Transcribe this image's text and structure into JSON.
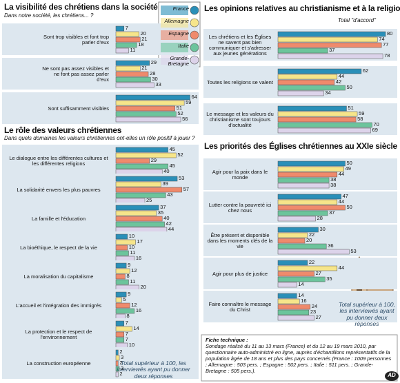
{
  "chart_data": [
    {
      "type": "bar",
      "orientation": "horizontal",
      "title": "La visibilité des chrétiens dans la société",
      "subtitle": "Dans notre société, les chrétiens... ?",
      "categories": [
        "Sont trop visibles et font trop parler d'eux",
        "Ne sont pas assez visibles et ne font pas assez parler d'eux",
        "Sont suffisamment visibles"
      ],
      "series": [
        {
          "name": "France",
          "color": "#2a8fb8",
          "values": [
            7,
            29,
            64
          ]
        },
        {
          "name": "Allemagne",
          "color": "#f6e58a",
          "values": [
            20,
            21,
            59
          ]
        },
        {
          "name": "Espagne",
          "color": "#ef8a6c",
          "values": [
            21,
            28,
            51
          ]
        },
        {
          "name": "Italie",
          "color": "#6cc49c",
          "values": [
            18,
            30,
            52
          ]
        },
        {
          "name": "Grande-Bretagne",
          "color": "#dcd3ea",
          "values": [
            11,
            33,
            56
          ]
        }
      ]
    },
    {
      "type": "bar",
      "orientation": "horizontal",
      "title": "Le rôle des valeurs chrétiennes",
      "subtitle": "Dans quels domaines les valeurs chrétiennes ont-elles un rôle positif à jouer ?",
      "categories": [
        "Le dialogue entre les différentes cultures et les différentes religions",
        "La solidarité envers les plus pauvres",
        "La famille et l'éducation",
        "La bioéthique, le respect de la vie",
        "La moralisation du capitalisme",
        "L'accueil et l'intégration des immigrés",
        "La protection et le respect de l'environnement",
        "La construction européenne"
      ],
      "series": [
        {
          "name": "France",
          "color": "#2a8fb8",
          "values": [
            45,
            53,
            37,
            10,
            9,
            9,
            7,
            2
          ]
        },
        {
          "name": "Allemagne",
          "color": "#f6e58a",
          "values": [
            52,
            39,
            35,
            17,
            12,
            5,
            14,
            3
          ]
        },
        {
          "name": "Espagne",
          "color": "#ef8a6c",
          "values": [
            29,
            57,
            40,
            10,
            8,
            12,
            7,
            2
          ]
        },
        {
          "name": "Italie",
          "color": "#6cc49c",
          "values": [
            45,
            43,
            42,
            11,
            11,
            16,
            7,
            3
          ]
        },
        {
          "name": "Grande-Bretagne",
          "color": "#dcd3ea",
          "values": [
            40,
            25,
            44,
            16,
            20,
            8,
            10,
            2
          ]
        }
      ],
      "note": "Total supérieur à 100, les interviewés ayant pu donner deux réponses"
    },
    {
      "type": "bar",
      "orientation": "horizontal",
      "title": "Les opinions relatives au christianisme et à la religion",
      "subtitle": "Total \"d'accord\"",
      "categories": [
        "Les chrétiens et les Églises ne savent pas bien communiquer et s'adresser aux jeunes générations",
        "Toutes les religions se valent",
        "Le message et les valeurs du christianisme sont toujours d'actualité"
      ],
      "series": [
        {
          "name": "France",
          "color": "#2a8fb8",
          "values": [
            80,
            62,
            51
          ]
        },
        {
          "name": "Allemagne",
          "color": "#f6e58a",
          "values": [
            74,
            44,
            59
          ]
        },
        {
          "name": "Espagne",
          "color": "#ef8a6c",
          "values": [
            77,
            42,
            58
          ]
        },
        {
          "name": "Italie",
          "color": "#6cc49c",
          "values": [
            37,
            50,
            70
          ]
        },
        {
          "name": "Grande-Bretagne",
          "color": "#dcd3ea",
          "values": [
            78,
            34,
            69
          ]
        }
      ]
    },
    {
      "type": "bar",
      "orientation": "horizontal",
      "title": "Les priorités des Églises chrétiennes au XXIe siècle",
      "categories": [
        "Agir pour la paix dans le monde",
        "Lutter contre la pauvreté ici chez nous",
        "Être présent et disponible dans les moments clés de la vie",
        "Agir pour plus de justice",
        "Faire connaître le message du Christ"
      ],
      "series": [
        {
          "name": "France",
          "color": "#2a8fb8",
          "values": [
            50,
            47,
            30,
            22,
            14
          ]
        },
        {
          "name": "Allemagne",
          "color": "#f6e58a",
          "values": [
            49,
            44,
            22,
            44,
            16
          ]
        },
        {
          "name": "Espagne",
          "color": "#ef8a6c",
          "values": [
            44,
            50,
            20,
            27,
            24
          ]
        },
        {
          "name": "Italie",
          "color": "#6cc49c",
          "values": [
            38,
            37,
            36,
            35,
            23
          ]
        },
        {
          "name": "Grande-Bretagne",
          "color": "#dcd3ea",
          "values": [
            38,
            28,
            53,
            14,
            27
          ]
        }
      ],
      "note": "Total supérieur à 100, les interviewés ayant pu donner deux réponses"
    }
  ],
  "fiche_technique": {
    "title": "Fiche technique :",
    "text": "Sondage réalisé du 11 au 13 mars (France) et du 12 au 19 mars 2010, par questionnaire auto-administré en ligne, auprès d'échantillons représentatifs de la population âgée de 18 ans et plus des pays concernés (France : 1009 personnes ; Allemagne : 503 pers. ; Espagne : 502 pers. ; Italie : 511 pers. ; Grande-Bretagne : 505 pers.)."
  },
  "logo": "AD"
}
